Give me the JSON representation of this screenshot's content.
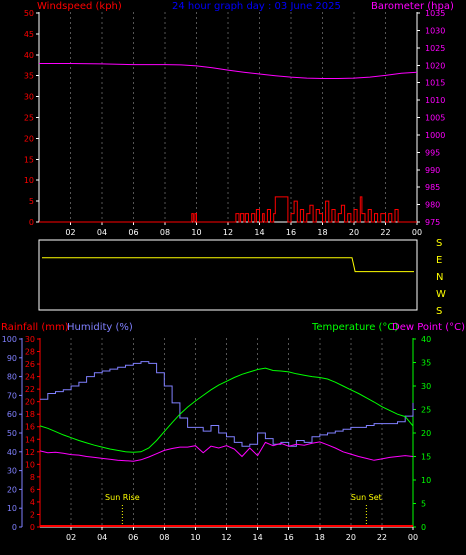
{
  "title": "24 hour graph day : 03 June 2025",
  "colors": {
    "background": "#000000",
    "wind": "#ff0000",
    "barometer": "#ff00ff",
    "title": "#0000ff",
    "direction": "#ffff00",
    "rain": "#ff0000",
    "humidity": "#8080ff",
    "temperature": "#00ff00",
    "dewpoint": "#ff00ff",
    "axis": "#ffffff",
    "grid": "#555555"
  },
  "x_ticks": [
    "02",
    "04",
    "06",
    "08",
    "10",
    "12",
    "14",
    "16",
    "18",
    "20",
    "22",
    "00"
  ],
  "direction_labels": [
    "S",
    "E",
    "N",
    "W",
    "S"
  ],
  "chart_data": [
    {
      "type": "line",
      "name": "wind_pressure",
      "left_label": "Windspeed (kph)",
      "right_label": "Barometer (hpa)",
      "left_ticks": [
        0,
        5,
        10,
        15,
        20,
        25,
        30,
        35,
        40,
        45,
        50
      ],
      "right_ticks": [
        975,
        980,
        985,
        990,
        995,
        1000,
        1005,
        1010,
        1015,
        1020,
        1025,
        1030,
        1035
      ],
      "ylim_left": [
        0,
        50
      ],
      "ylim_right": [
        975,
        1035
      ],
      "x_range": [
        0,
        24
      ],
      "series": [
        {
          "axis": "right",
          "color": "#ff00ff",
          "x": [
            0,
            2,
            4,
            6,
            8,
            9,
            10,
            11,
            12,
            13,
            14,
            15,
            16,
            17,
            18,
            19,
            20,
            21,
            22,
            23,
            24
          ],
          "y": [
            1020.5,
            1020.5,
            1020.4,
            1020.2,
            1020.2,
            1020.1,
            1019.8,
            1019.3,
            1018.6,
            1018.0,
            1017.5,
            1017.0,
            1016.6,
            1016.3,
            1016.2,
            1016.2,
            1016.3,
            1016.6,
            1017.1,
            1017.7,
            1018.0
          ]
        },
        {
          "axis": "left",
          "color": "#ff0000",
          "x": [
            0,
            9.6,
            9.7,
            9.8,
            9.9,
            10.0,
            12.4,
            12.5,
            12.7,
            12.8,
            13.0,
            13.1,
            13.3,
            13.5,
            13.7,
            13.8,
            14.0,
            14.2,
            14.3,
            14.5,
            14.7,
            14.9,
            15.0,
            15.2,
            15.4,
            15.6,
            15.8,
            16.0,
            16.2,
            16.4,
            16.6,
            16.8,
            17.0,
            17.2,
            17.4,
            17.6,
            17.8,
            18.0,
            18.2,
            18.4,
            18.6,
            18.8,
            19.0,
            19.2,
            19.4,
            19.6,
            19.8,
            20.0,
            20.2,
            20.4,
            20.5,
            20.7,
            20.9,
            21.1,
            21.3,
            21.5,
            21.7,
            22.0,
            22.2,
            22.4,
            22.6,
            22.8,
            24
          ],
          "y": [
            0,
            0,
            2,
            0,
            2,
            0,
            0,
            2,
            0,
            2,
            0,
            2,
            0,
            2,
            0,
            3,
            0,
            2,
            0,
            3,
            0,
            2,
            6,
            6,
            6,
            6,
            0,
            2,
            5,
            0,
            3,
            0,
            2,
            4,
            0,
            3,
            2,
            0,
            5,
            0,
            3,
            0,
            2,
            4,
            0,
            2,
            0,
            3,
            0,
            6,
            2,
            0,
            3,
            0,
            2,
            0,
            2,
            0,
            2,
            0,
            3,
            0,
            0
          ]
        }
      ]
    },
    {
      "type": "line",
      "name": "wind_direction",
      "y_categories": [
        "S",
        "E",
        "N",
        "W",
        "S"
      ],
      "ylim": [
        0,
        360
      ],
      "x_range": [
        0,
        24
      ],
      "series": [
        {
          "color": "#ffff00",
          "x": [
            0,
            2,
            4,
            6,
            8,
            10,
            12,
            14,
            16,
            18,
            20,
            20.1,
            20.2,
            20.4,
            22,
            24
          ],
          "y": [
            280,
            280,
            280,
            280,
            280,
            280,
            280,
            280,
            280,
            280,
            280,
            240,
            200,
            200,
            200,
            200
          ]
        }
      ]
    },
    {
      "type": "line",
      "name": "rain_humidity_temperature",
      "rain_label": "Rainfall (mm)",
      "humidity_label": "Humidity (%)",
      "temperature_label": "Temperature (°C)",
      "dewpoint_label": "Dew Point (°C)",
      "humidity_ticks": [
        0,
        10,
        20,
        30,
        40,
        50,
        60,
        70,
        80,
        90,
        100
      ],
      "rain_ticks": [
        0,
        2,
        4,
        6,
        8,
        10,
        12,
        14,
        16,
        18,
        20,
        22,
        24,
        26,
        28,
        30
      ],
      "temperature_ticks": [
        0,
        5,
        10,
        15,
        20,
        25,
        30,
        35,
        40
      ],
      "ylim_humidity": [
        0,
        100
      ],
      "ylim_rain": [
        0,
        30
      ],
      "ylim_temperature": [
        0,
        40
      ],
      "x_range": [
        0,
        24
      ],
      "annotations": [
        {
          "label": "Sun Rise",
          "x": 5.3
        },
        {
          "label": "Sun Set",
          "x": 21.0
        }
      ],
      "series": [
        {
          "label": "humidity",
          "color": "#8080ff",
          "x": [
            0,
            0.5,
            1,
            1.5,
            2,
            2.5,
            3,
            3.5,
            4,
            4.5,
            5,
            5.5,
            6,
            6.5,
            7,
            7.5,
            8,
            8.5,
            9,
            9.5,
            10,
            10.5,
            11,
            11.5,
            12,
            12.5,
            13,
            13.5,
            14,
            14.5,
            15,
            15.5,
            16,
            16.5,
            17,
            17.5,
            18,
            18.5,
            19,
            19.5,
            20,
            20.5,
            21,
            21.5,
            22,
            22.5,
            23,
            23.5,
            24
          ],
          "y": [
            68,
            71,
            72,
            73,
            75,
            77,
            80,
            82,
            83,
            84,
            85,
            86,
            87,
            88,
            87,
            82,
            75,
            66,
            58,
            53,
            53,
            51,
            54,
            50,
            48,
            45,
            43,
            44,
            50,
            47,
            44,
            45,
            43,
            46,
            45,
            48,
            49,
            50,
            51,
            52,
            53,
            53,
            54,
            55,
            55,
            55,
            56,
            59,
            66
          ]
        },
        {
          "label": "temperature",
          "color": "#00ff00",
          "x": [
            0,
            0.5,
            1,
            1.5,
            2,
            2.5,
            3,
            3.5,
            4,
            4.5,
            5,
            5.5,
            6,
            6.5,
            7,
            7.5,
            8,
            8.5,
            9,
            9.5,
            10,
            10.5,
            11,
            11.5,
            12,
            12.5,
            13,
            13.5,
            14,
            14.5,
            15,
            15.5,
            16,
            16.5,
            17,
            17.5,
            18,
            18.5,
            19,
            19.5,
            20,
            20.5,
            21,
            21.5,
            22,
            22.5,
            23,
            23.5,
            24
          ],
          "y": [
            21.5,
            21.0,
            20.3,
            19.6,
            19.0,
            18.4,
            17.9,
            17.4,
            17.0,
            16.6,
            16.3,
            16.0,
            15.9,
            16.0,
            16.8,
            18.4,
            20.3,
            22.2,
            24.0,
            25.5,
            26.8,
            28.0,
            29.2,
            30.2,
            31.0,
            31.8,
            32.5,
            33.0,
            33.5,
            33.8,
            33.3,
            33.2,
            33.0,
            32.6,
            32.3,
            32.0,
            31.8,
            31.5,
            30.8,
            30.0,
            29.2,
            28.4,
            27.5,
            26.6,
            25.6,
            24.8,
            24.0,
            23.5,
            21.5
          ]
        },
        {
          "label": "dew point",
          "color": "#ff00ff",
          "x": [
            0,
            0.5,
            1,
            1.5,
            2,
            2.5,
            3,
            3.5,
            4,
            4.5,
            5,
            5.5,
            6,
            6.5,
            7,
            7.5,
            8,
            8.5,
            9,
            9.5,
            10,
            10.5,
            11,
            11.5,
            12,
            12.5,
            13,
            13.5,
            14,
            14.5,
            15,
            15.5,
            16,
            16.5,
            17,
            17.5,
            18,
            18.5,
            19,
            19.5,
            20,
            20.5,
            21,
            21.5,
            22,
            22.5,
            23,
            23.5,
            24
          ],
          "y": [
            16.2,
            15.8,
            15.9,
            15.7,
            15.4,
            15.3,
            15.0,
            14.8,
            14.6,
            14.4,
            14.2,
            14.1,
            14.0,
            14.3,
            14.9,
            15.6,
            16.3,
            16.7,
            17.0,
            17.0,
            17.3,
            15.8,
            17.2,
            16.8,
            17.3,
            16.6,
            15.0,
            16.8,
            15.2,
            18.0,
            17.3,
            17.8,
            17.2,
            17.6,
            17.4,
            17.8,
            18.1,
            17.5,
            16.8,
            16.0,
            15.5,
            15.0,
            14.6,
            14.2,
            14.5,
            14.8,
            15.0,
            15.2,
            15.0
          ]
        },
        {
          "label": "rainfall",
          "color": "#ff0000",
          "x": [
            0,
            24
          ],
          "y": [
            0,
            0
          ]
        }
      ]
    }
  ]
}
